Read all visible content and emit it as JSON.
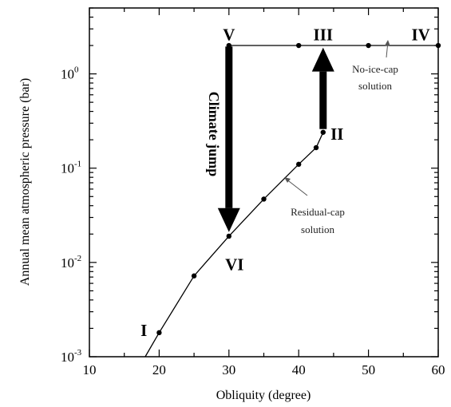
{
  "chart_data": {
    "type": "scatter",
    "title": "",
    "xlabel": "Obliquity (degree)",
    "ylabel": "Annual mean atmospheric pressure (bar)",
    "xlim": [
      10,
      60
    ],
    "ylim": [
      0.001,
      5
    ],
    "yscale": "log",
    "x_ticks": [
      10,
      20,
      30,
      40,
      50,
      60
    ],
    "y_ticks": [
      {
        "value": 0.001,
        "base": "10",
        "exp": "-3"
      },
      {
        "value": 0.01,
        "base": "10",
        "exp": "-2"
      },
      {
        "value": 0.1,
        "base": "10",
        "exp": "-1"
      },
      {
        "value": 1,
        "base": "10",
        "exp": "0"
      }
    ],
    "series": [
      {
        "name": "Residual-cap solution",
        "x": [
          18,
          20,
          25,
          30,
          35,
          40,
          42.5,
          43.5
        ],
        "y": [
          0.001,
          0.0018,
          0.0072,
          0.019,
          0.047,
          0.11,
          0.165,
          0.24
        ],
        "markers_at": [
          1,
          2,
          3,
          4,
          5,
          6,
          7
        ]
      },
      {
        "name": "No-ice-cap solution",
        "x": [
          30,
          40,
          50,
          60
        ],
        "y": [
          2.0,
          2.0,
          2.0,
          2.0
        ]
      }
    ],
    "annotations": {
      "roman_labels": [
        {
          "text": "I",
          "x": 17.8,
          "y": 0.0019
        },
        {
          "text": "II",
          "x": 45.5,
          "y": 0.23
        },
        {
          "text": "III",
          "x": 43.5,
          "y": 2.6
        },
        {
          "text": "IV",
          "x": 57.5,
          "y": 2.6
        },
        {
          "text": "V",
          "x": 30,
          "y": 2.6
        },
        {
          "text": "VI",
          "x": 30.8,
          "y": 0.0095
        }
      ],
      "no_ice_cap_label": [
        "No-ice-cap",
        "solution"
      ],
      "residual_cap_label": [
        "Residual-cap",
        "solution"
      ],
      "climate_jump_label": "Climate jump",
      "jump_down": {
        "x": 30,
        "from": 1.95,
        "to": 0.021
      },
      "jump_up": {
        "x": 43.5,
        "from": 0.26,
        "to": 1.9
      }
    }
  }
}
